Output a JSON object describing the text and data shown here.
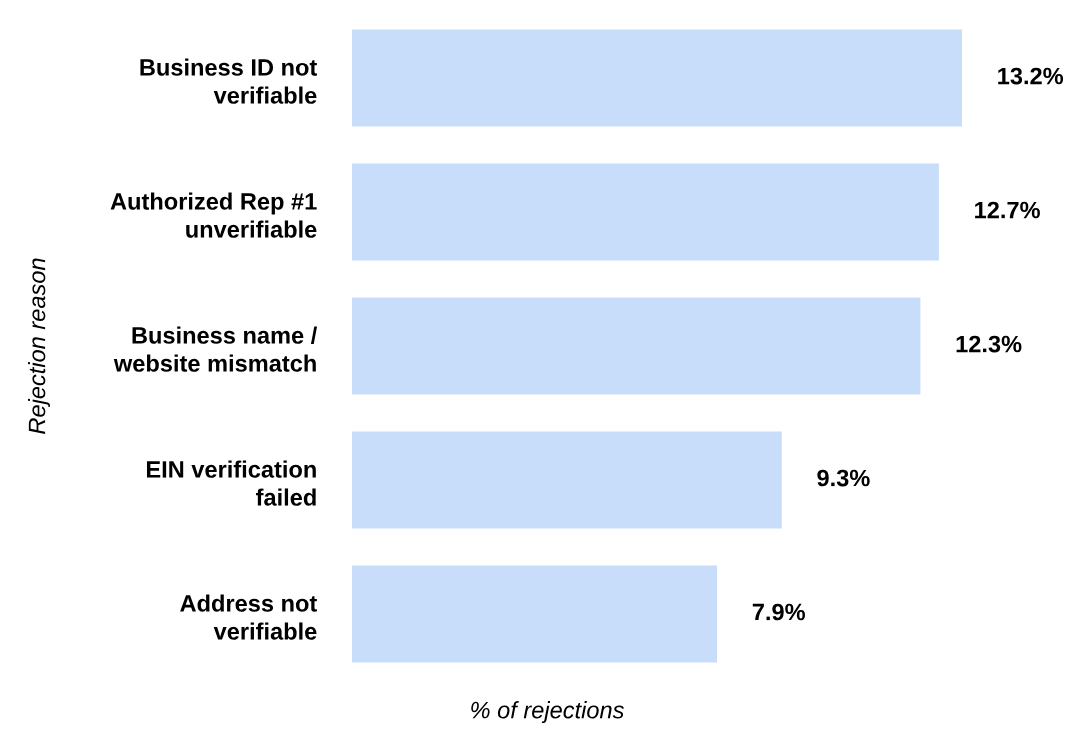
{
  "chart_data": {
    "type": "bar",
    "orientation": "horizontal",
    "categories": [
      "Business ID not\nverifiable",
      "Authorized Rep #1\nunverifiable",
      "Business name /\nwebsite mismatch",
      "EIN verification\nfailed",
      "Address not\nverifiable"
    ],
    "values": [
      13.2,
      12.7,
      12.3,
      9.3,
      7.9
    ],
    "value_labels": [
      "13.2%",
      "12.7%",
      "12.3%",
      "9.3%",
      "7.9%"
    ],
    "color": "#c8ddfa",
    "xlabel": "% of rejections",
    "ylabel": "Rejection reason",
    "grid": false,
    "legend": false,
    "tick_labels": "y"
  }
}
